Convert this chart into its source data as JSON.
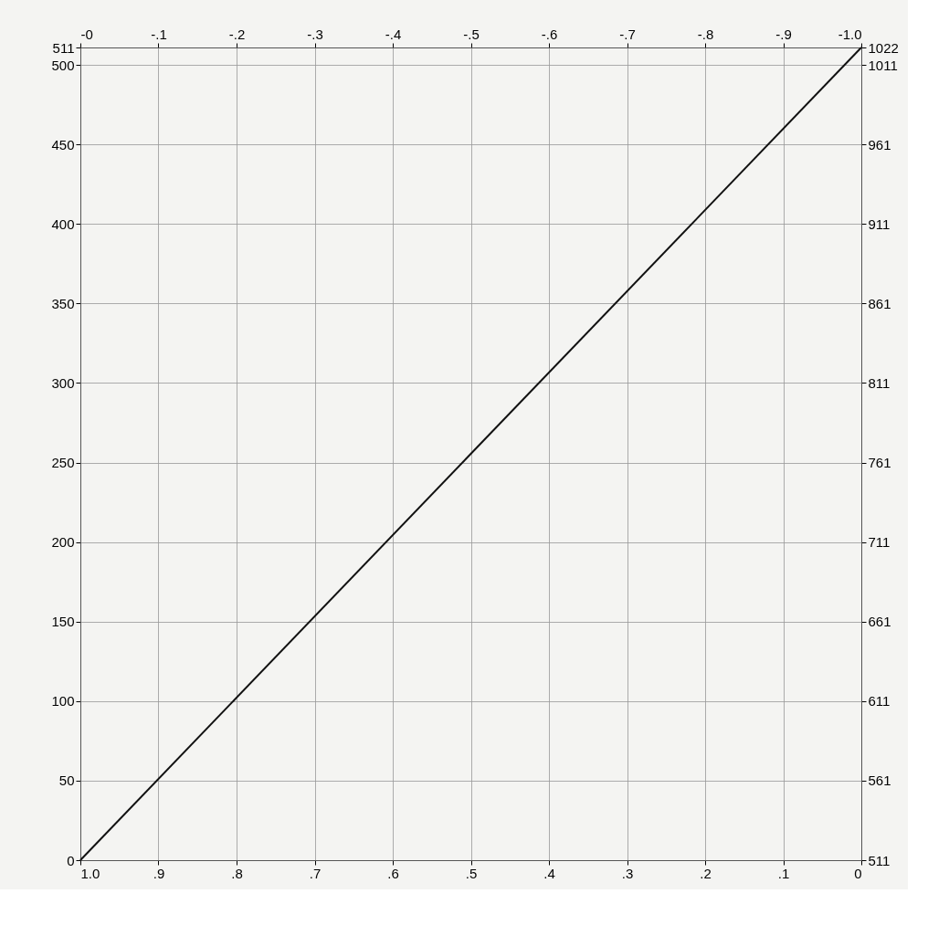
{
  "chart_data": {
    "type": "line",
    "x": [
      1.0,
      0
    ],
    "series": [
      {
        "color": "#111111",
        "values": [
          0,
          511
        ]
      }
    ],
    "xlim": [
      1.0,
      0
    ],
    "xticks": [
      {
        "value": 1.0,
        "label": "1.0"
      },
      {
        "value": 0.9,
        "label": ".9"
      },
      {
        "value": 0.8,
        "label": ".8"
      },
      {
        "value": 0.7,
        "label": ".7"
      },
      {
        "value": 0.6,
        "label": ".6"
      },
      {
        "value": 0.5,
        "label": ".5"
      },
      {
        "value": 0.4,
        "label": ".4"
      },
      {
        "value": 0.3,
        "label": ".3"
      },
      {
        "value": 0.2,
        "label": ".2"
      },
      {
        "value": 0.1,
        "label": ".1"
      },
      0
    ],
    "x2lim": [
      0,
      -1.0
    ],
    "x2ticks": [
      {
        "value": 0,
        "label": "-0"
      },
      {
        "value": -0.1,
        "label": "-.1"
      },
      {
        "value": -0.2,
        "label": "-.2"
      },
      {
        "value": -0.3,
        "label": "-.3"
      },
      {
        "value": -0.4,
        "label": "-.4"
      },
      {
        "value": -0.5,
        "label": "-.5"
      },
      {
        "value": -0.6,
        "label": "-.6"
      },
      {
        "value": -0.7,
        "label": "-.7"
      },
      {
        "value": -0.8,
        "label": "-.8"
      },
      {
        "value": -0.9,
        "label": "-.9"
      },
      {
        "value": -1.0,
        "label": "-1.0"
      }
    ],
    "ylim": [
      0,
      511
    ],
    "yticks": [
      0,
      50,
      100,
      150,
      200,
      250,
      300,
      350,
      400,
      450,
      500,
      511
    ],
    "y2lim": [
      511,
      1022
    ],
    "y2ticks": [
      511,
      561,
      611,
      661,
      711,
      761,
      811,
      861,
      911,
      961,
      1011,
      1022
    ],
    "grid": true,
    "legend": false,
    "marker": "none",
    "line_style": "solid"
  }
}
